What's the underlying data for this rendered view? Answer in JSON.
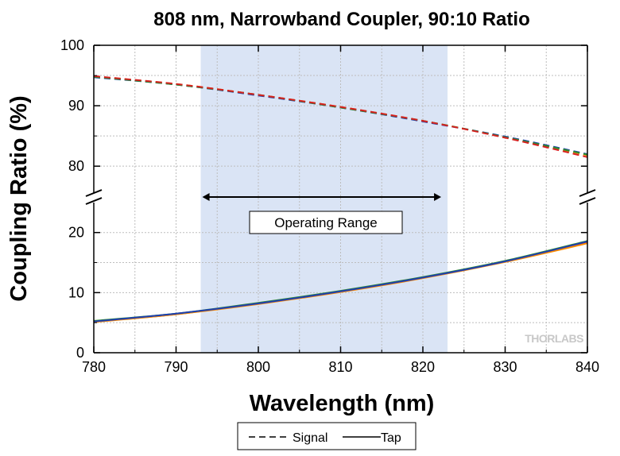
{
  "chart_data": {
    "type": "line",
    "title": "808 nm, Narrowband Coupler, 90:10 Ratio",
    "xlabel": "Wavelength (nm)",
    "ylabel": "Coupling Ratio (%)",
    "xlim": [
      780,
      840
    ],
    "x_ticks": [
      "780",
      "790",
      "800",
      "810",
      "820",
      "830",
      "840"
    ],
    "y_axis": "broken",
    "ylim_upper": [
      77,
      100
    ],
    "ylim_lower": [
      0,
      23
    ],
    "y_ticks_upper": [
      "80",
      "90",
      "100"
    ],
    "y_ticks_lower": [
      "0",
      "10",
      "20"
    ],
    "grid": true,
    "legend_position": "bottom",
    "shaded_region": {
      "x": [
        793,
        823
      ],
      "label": "Operating Range",
      "color": "#dae4f5"
    },
    "series": [
      {
        "name": "Signal",
        "style": "dashed",
        "color": "#ff8c00",
        "x": [
          780,
          790,
          800,
          810,
          820,
          830,
          840
        ],
        "y": [
          94.8,
          93.6,
          91.8,
          89.8,
          87.5,
          84.8,
          81.8
        ]
      },
      {
        "style": "dashed",
        "color": "#1f3fb0",
        "x": [
          780,
          790,
          800,
          810,
          820,
          830,
          840
        ],
        "y": [
          94.7,
          93.5,
          91.7,
          89.7,
          87.4,
          84.9,
          82.0
        ]
      },
      {
        "style": "dashed",
        "color": "#2e8b2e",
        "x": [
          780,
          790,
          800,
          810,
          820,
          830,
          840
        ],
        "y": [
          94.8,
          93.5,
          91.8,
          89.7,
          87.5,
          84.8,
          81.9
        ]
      },
      {
        "style": "dashed",
        "color": "#d62020",
        "x": [
          780,
          790,
          800,
          810,
          820,
          830,
          840
        ],
        "y": [
          94.9,
          93.6,
          91.8,
          89.8,
          87.5,
          84.7,
          81.5
        ]
      },
      {
        "name": "Tap",
        "style": "solid",
        "color": "#d62020",
        "x": [
          780,
          790,
          800,
          810,
          820,
          830,
          840
        ],
        "y": [
          5.2,
          6.4,
          8.2,
          10.2,
          12.5,
          15.2,
          18.4
        ]
      },
      {
        "style": "solid",
        "color": "#ff8c00",
        "x": [
          780,
          790,
          800,
          810,
          820,
          830,
          840
        ],
        "y": [
          5.1,
          6.4,
          8.1,
          10.1,
          12.4,
          15.1,
          18.2
        ]
      },
      {
        "style": "solid",
        "color": "#2e8b2e",
        "x": [
          780,
          790,
          800,
          810,
          820,
          830,
          840
        ],
        "y": [
          5.3,
          6.5,
          8.3,
          10.3,
          12.6,
          15.3,
          18.6
        ]
      },
      {
        "style": "solid",
        "color": "#1f3fb0",
        "x": [
          780,
          790,
          800,
          810,
          820,
          830,
          840
        ],
        "y": [
          5.2,
          6.5,
          8.2,
          10.2,
          12.5,
          15.2,
          18.5
        ]
      }
    ],
    "watermark": "THORLABS"
  }
}
